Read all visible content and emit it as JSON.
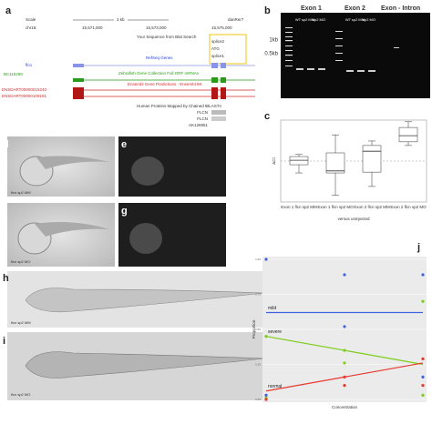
{
  "labels": [
    "a",
    "b",
    "c",
    "d",
    "e",
    "f",
    "g",
    "h",
    "i",
    "j"
  ],
  "browser": {
    "scale": "Scale",
    "chrom": "chr16:",
    "scale_bar": "2 kb",
    "assembly": "danRer7",
    "positions": [
      "15,571,000",
      "15,573,000",
      "15,575,000"
    ],
    "blat": "Your Sequence from Blat Search",
    "markers": [
      "splice2",
      "ATG",
      "splice1"
    ],
    "tracks": [
      {
        "name": "RefSeq Genes",
        "genes": [
          "flcn"
        ]
      },
      {
        "name": "Zebrafish Gene Collection Full ORF mRNAs",
        "genes": [
          "BC115280"
        ]
      },
      {
        "name": "Ensembl Gene Predictions - Ensembl 68",
        "genes": [
          "ENSDART00000015240",
          "ENSDART00000109191"
        ]
      },
      {
        "name": "Human Proteins Mapped by Chained tBLASTn",
        "genes": [
          "FLCN",
          "FLCN",
          "AK126951"
        ]
      }
    ]
  },
  "gel": {
    "groups": [
      "Exon 1",
      "Exon 2",
      "Exon - Intron"
    ],
    "lanes": [
      "WT",
      "sp2 MM",
      "sp2 MO"
    ],
    "sizes": [
      "1kb",
      "0.5kb"
    ]
  },
  "embryos": [
    "flcn sp2 MM",
    "flcn sp2 MO",
    "flcn sp2 MM",
    "flcn sp2 MO"
  ],
  "chart_data": [
    {
      "type": "box",
      "ylabel": "ΔCt",
      "xlabel": "versus uninjected",
      "categories": [
        "Exon 1 flcn sp2 MM",
        "Exon 1 flcn sp2 MO",
        "Exon 2 flcn sp2 MM",
        "Exon 2 flcn sp2 MO"
      ],
      "min": [
        -0.29,
        -0.84,
        -0.62,
        0.38
      ],
      "q1": [
        -0.09,
        -0.29,
        -0.27,
        0.47
      ],
      "median": [
        0.02,
        -0.24,
        0.24,
        0.62
      ],
      "q3": [
        0.11,
        0.2,
        0.38,
        0.82
      ],
      "max": [
        0.16,
        0.64,
        0.49,
        0.96
      ],
      "ylim": [
        -1,
        1
      ]
    },
    {
      "type": "scatter",
      "xlabel": "Concentration",
      "ylabel": "Proportion",
      "xlim": [
        0,
        2
      ],
      "ylim": [
        0,
        1
      ],
      "yticks": [
        {
          "value": 0,
          "label": "0.00"
        },
        {
          "value": 0.25,
          "label": "0.25"
        },
        {
          "value": 0.5,
          "label": "0.50"
        },
        {
          "value": 0.75,
          "label": "0.75"
        },
        {
          "value": 1,
          "label": "1.00"
        }
      ],
      "series": [
        {
          "name": "mild",
          "color": "#3f63e0",
          "x": [
            0,
            0,
            1,
            1,
            2,
            2
          ],
          "values": [
            1.0,
            0.03,
            0.89,
            0.52,
            0.89,
            0.16
          ],
          "fit": [
            0.62,
            0.62
          ]
        },
        {
          "name": "severe",
          "color": "#7ccd1a",
          "x": [
            0,
            0,
            1,
            1,
            2,
            2
          ],
          "values": [
            0.45,
            0.01,
            0.35,
            0.26,
            0.7,
            0.03
          ],
          "fit": [
            0.45,
            0.25
          ]
        },
        {
          "name": "normal",
          "color": "#e8372c",
          "x": [
            0,
            1,
            1,
            2,
            2
          ],
          "values": [
            0,
            0.16,
            0.1,
            0.29,
            0.1
          ],
          "fit": [
            0.06,
            0.26
          ]
        }
      ]
    }
  ]
}
